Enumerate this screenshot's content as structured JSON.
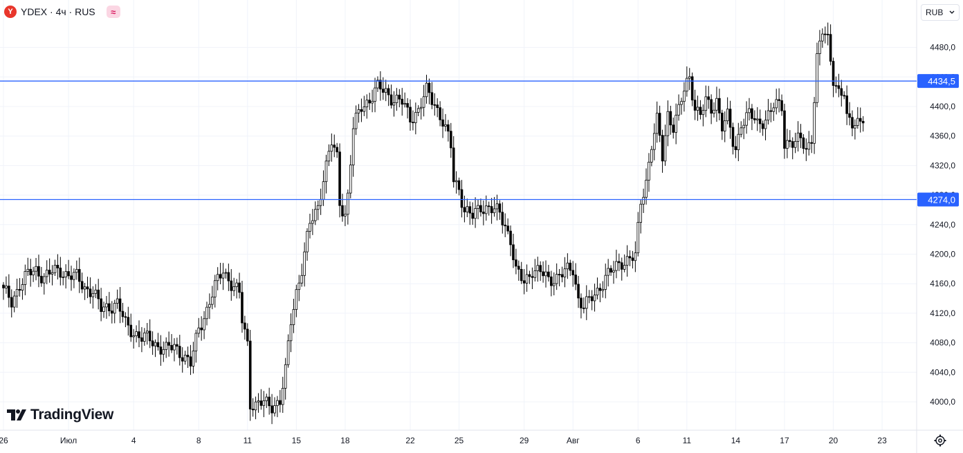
{
  "header": {
    "logo_letter": "Y",
    "symbol": "YDEX · 4ч · RUS",
    "indicator_glyph": "≈"
  },
  "currency_select": {
    "value": "RUB",
    "icon": "chevron-down-icon"
  },
  "brand": {
    "text": "TradingView",
    "icon": "tradingview-logo-icon"
  },
  "settings": {
    "icon": "gear-icon"
  },
  "colors": {
    "up_body": "#ffffff",
    "down_body": "#000000",
    "wick": "#000000",
    "hline": "#2962ff",
    "hline_label_bg": "#2962ff",
    "grid": "#f0f3fa"
  },
  "chart_data": {
    "type": "candlestick",
    "title": "YDEX · 4ч · RUS",
    "timeframe": "4ч",
    "ylim": [
      3985,
      4520
    ],
    "yticks": [
      4000,
      4040,
      4080,
      4120,
      4160,
      4200,
      4240,
      4280,
      4320,
      4360,
      4400,
      4440,
      4480
    ],
    "ytick_labels": [
      "4000,0",
      "4040,0",
      "4080,0",
      "4120,0",
      "4160,0",
      "4200,0",
      "4240,0",
      "4280,0",
      "4320,0",
      "4360,0",
      "4400,0",
      "4440,0",
      "4480,0"
    ],
    "xticks": [
      {
        "label": "26",
        "bar": 0
      },
      {
        "label": "Июл",
        "bar": 24
      },
      {
        "label": "4",
        "bar": 48
      },
      {
        "label": "8",
        "bar": 72
      },
      {
        "label": "11",
        "bar": 90
      },
      {
        "label": "15",
        "bar": 108
      },
      {
        "label": "18",
        "bar": 126
      },
      {
        "label": "22",
        "bar": 150
      },
      {
        "label": "25",
        "bar": 168
      },
      {
        "label": "29",
        "bar": 192
      },
      {
        "label": "Авг",
        "bar": 210
      },
      {
        "label": "6",
        "bar": 234
      },
      {
        "label": "11",
        "bar": 252
      },
      {
        "label": "14",
        "bar": 270
      },
      {
        "label": "17",
        "bar": 288
      },
      {
        "label": "20",
        "bar": 306
      },
      {
        "label": "23",
        "bar": 324
      }
    ],
    "horizontal_lines": [
      {
        "value": 4434.5,
        "label": "4434,5"
      },
      {
        "value": 4274.0,
        "label": "4274,0"
      }
    ],
    "grid": true,
    "path": [
      [
        0,
        4150
      ],
      [
        3,
        4135
      ],
      [
        6,
        4160
      ],
      [
        9,
        4172
      ],
      [
        12,
        4178
      ],
      [
        15,
        4170
      ],
      [
        18,
        4175
      ],
      [
        21,
        4178
      ],
      [
        24,
        4172
      ],
      [
        27,
        4168
      ],
      [
        30,
        4155
      ],
      [
        33,
        4150
      ],
      [
        36,
        4125
      ],
      [
        39,
        4130
      ],
      [
        42,
        4133
      ],
      [
        45,
        4105
      ],
      [
        48,
        4095
      ],
      [
        51,
        4086
      ],
      [
        54,
        4085
      ],
      [
        57,
        4076
      ],
      [
        60,
        4070
      ],
      [
        63,
        4075
      ],
      [
        66,
        4065
      ],
      [
        69,
        4050
      ],
      [
        72,
        4100
      ],
      [
        75,
        4125
      ],
      [
        78,
        4155
      ],
      [
        81,
        4180
      ],
      [
        84,
        4160
      ],
      [
        87,
        4145
      ],
      [
        88,
        4110
      ],
      [
        90,
        4080
      ],
      [
        91,
        4000
      ],
      [
        93,
        3995
      ],
      [
        96,
        3998
      ],
      [
        99,
        3996
      ],
      [
        102,
        4000
      ],
      [
        104,
        4040
      ],
      [
        106,
        4110
      ],
      [
        108,
        4150
      ],
      [
        110,
        4180
      ],
      [
        113,
        4240
      ],
      [
        116,
        4265
      ],
      [
        118,
        4305
      ],
      [
        121,
        4350
      ],
      [
        123,
        4330
      ],
      [
        124,
        4270
      ],
      [
        126,
        4255
      ],
      [
        127,
        4280
      ],
      [
        129,
        4370
      ],
      [
        132,
        4400
      ],
      [
        135,
        4410
      ],
      [
        138,
        4425
      ],
      [
        141,
        4420
      ],
      [
        144,
        4410
      ],
      [
        147,
        4405
      ],
      [
        150,
        4385
      ],
      [
        153,
        4395
      ],
      [
        156,
        4420
      ],
      [
        159,
        4405
      ],
      [
        162,
        4380
      ],
      [
        165,
        4345
      ],
      [
        166,
        4300
      ],
      [
        168,
        4290
      ],
      [
        170,
        4260
      ],
      [
        173,
        4250
      ],
      [
        176,
        4265
      ],
      [
        179,
        4263
      ],
      [
        181,
        4258
      ],
      [
        183,
        4255
      ],
      [
        185,
        4240
      ],
      [
        187,
        4220
      ],
      [
        189,
        4175
      ],
      [
        192,
        4162
      ],
      [
        195,
        4180
      ],
      [
        198,
        4175
      ],
      [
        201,
        4165
      ],
      [
        204,
        4170
      ],
      [
        207,
        4175
      ],
      [
        210,
        4180
      ],
      [
        212,
        4140
      ],
      [
        214,
        4130
      ],
      [
        216,
        4135
      ],
      [
        219,
        4150
      ],
      [
        222,
        4170
      ],
      [
        225,
        4178
      ],
      [
        228,
        4190
      ],
      [
        231,
        4195
      ],
      [
        233,
        4195
      ],
      [
        235,
        4270
      ],
      [
        237,
        4300
      ],
      [
        239,
        4350
      ],
      [
        241,
        4380
      ],
      [
        243,
        4330
      ],
      [
        245,
        4390
      ],
      [
        247,
        4375
      ],
      [
        249,
        4395
      ],
      [
        251,
        4420
      ],
      [
        253,
        4440
      ],
      [
        255,
        4400
      ],
      [
        257,
        4390
      ],
      [
        259,
        4405
      ],
      [
        261,
        4395
      ],
      [
        263,
        4410
      ],
      [
        265,
        4375
      ],
      [
        267,
        4385
      ],
      [
        269,
        4350
      ],
      [
        270,
        4340
      ],
      [
        272,
        4380
      ],
      [
        275,
        4390
      ],
      [
        278,
        4375
      ],
      [
        281,
        4385
      ],
      [
        284,
        4400
      ],
      [
        287,
        4400
      ],
      [
        288,
        4350
      ],
      [
        290,
        4355
      ],
      [
        292,
        4350
      ],
      [
        294,
        4355
      ],
      [
        296,
        4340
      ],
      [
        298,
        4360
      ],
      [
        300,
        4465
      ],
      [
        302,
        4500
      ],
      [
        304,
        4490
      ],
      [
        306,
        4440
      ],
      [
        308,
        4420
      ],
      [
        310,
        4415
      ],
      [
        311,
        4380
      ],
      [
        313,
        4378
      ],
      [
        315,
        4382
      ],
      [
        317,
        4385
      ]
    ]
  }
}
